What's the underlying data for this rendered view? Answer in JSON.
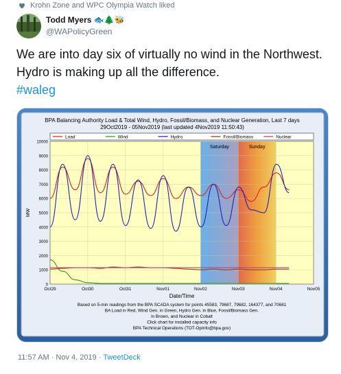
{
  "social_context": "Krohn Zone and WPC Olympia Watch liked",
  "author": {
    "name": "Todd Myers",
    "emoji": "🐟🌲🐝",
    "handle": "@WAPolicyGreen"
  },
  "tweet": {
    "text": "We are into day six of virtually no wind in the Northwest. Hydro is making up all the difference.",
    "hashtag": "#waleg"
  },
  "chart_data": {
    "type": "line",
    "title": "BPA Balancing Authority Load & Total Wind, Hydro, Fossil/Biomass, and Nuclear Generation, Last 7 days",
    "subtitle": "29Oct2019 - 05Nov2019 (last updated 4Nov2019 11:50:43)",
    "xlabel": "Date/Time",
    "ylabel": "MW",
    "ylim": [
      0,
      10000
    ],
    "yticks": [
      0,
      1000,
      2000,
      3000,
      4000,
      5000,
      6000,
      7000,
      8000,
      9000,
      10000
    ],
    "xticks": [
      "Oct29",
      "Oct30",
      "Oct31",
      "Nov01",
      "Nov02",
      "Nov03",
      "Nov04",
      "Nov05"
    ],
    "weekend_labels": [
      "Saturday",
      "Sunday"
    ],
    "legend": [
      "Load",
      "Wind",
      "Hydro",
      "Fossil/Biomass",
      "Nuclear"
    ],
    "series": [
      {
        "name": "Load",
        "color": "#e02020",
        "values": [
          6000,
          8200,
          6600,
          8800,
          6400,
          8200,
          6300,
          7200,
          6200,
          7400,
          6000,
          6800,
          6200,
          7000,
          6000,
          6600,
          5800,
          6800,
          7800,
          6600
        ]
      },
      {
        "name": "Wind",
        "color": "#2a9a2a",
        "values": [
          1700,
          900,
          300,
          100,
          50,
          50,
          50,
          50,
          50,
          50,
          50,
          50,
          50,
          50,
          50,
          50,
          50,
          50,
          50,
          50
        ]
      },
      {
        "name": "Hydro",
        "color": "#2020c0",
        "values": [
          4000,
          8400,
          4500,
          9000,
          4400,
          8400,
          4100,
          7300,
          3900,
          7600,
          3700,
          6800,
          4000,
          7000,
          4100,
          6800,
          5200,
          5000,
          8400,
          6400
        ]
      },
      {
        "name": "Fossil/Biomass",
        "color": "#8b4513",
        "values": [
          1050,
          1100,
          1150,
          1150,
          1100,
          1200,
          1150,
          1200,
          1150,
          1150,
          1100,
          1050,
          1000,
          1050,
          1000,
          1050,
          1000,
          1000,
          1050,
          1050
        ]
      },
      {
        "name": "Nuclear",
        "color": "#c04080",
        "values": [
          1150,
          1150,
          1150,
          1150,
          1150,
          1150,
          1150,
          1150,
          1150,
          1150,
          1150,
          1150,
          1150,
          1150,
          1150,
          1150,
          1150,
          1150,
          1150,
          1150
        ]
      }
    ],
    "footnote": [
      "Based on 5-min readings from the BPA SCADA system for points 45583, 79687, 79682, 164377, and 70681",
      "BA Load in Red, Wind Gen. in Green, Hydro Gen. in Blue, Fossil/Biomass Gen.",
      "in Brown, and Nuclear in Cobalt",
      "Click chart for installed capacity info",
      "BPA Technical Operations (TOT-OpInfo@bpa.gov)"
    ]
  },
  "footer": {
    "time": "11:57 AM · Nov 4, 2019",
    "separator": " · ",
    "source": "TweetDeck"
  }
}
